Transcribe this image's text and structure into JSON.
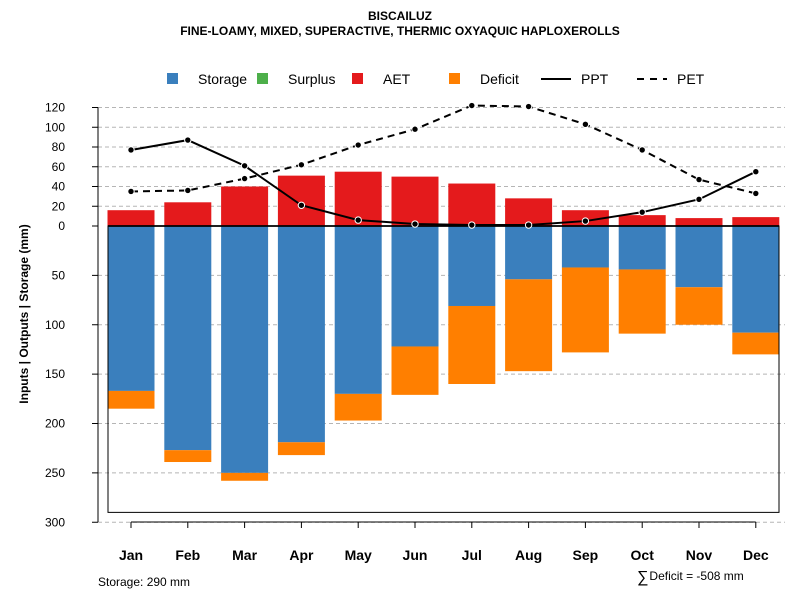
{
  "title": "BISCAILUZ",
  "subtitle": "FINE-LOAMY, MIXED, SUPERACTIVE, THERMIC OXYAQUIC HAPLOXEROLLS",
  "footer": {
    "storage_note": "Storage: 290 mm",
    "deficit_symbol": "∑",
    "deficit_note": "Deficit = -508 mm"
  },
  "colors": {
    "storage": "#3a7fbd",
    "surplus": "#4daf4a",
    "aet": "#e41a1c",
    "deficit": "#ff7f00",
    "line": "#000000",
    "grid": "#b5b5b5"
  },
  "chart_data": {
    "type": "bar",
    "title": "BISCAILUZ",
    "subtitle": "FINE-LOAMY, MIXED, SUPERACTIVE, THERMIC OXYAQUIC HAPLOXEROLLS",
    "ylabel": "Inputs | Outputs | Storage    (mm)",
    "categories": [
      "Jan",
      "Feb",
      "Mar",
      "Apr",
      "May",
      "Jun",
      "Jul",
      "Aug",
      "Sep",
      "Oct",
      "Nov",
      "Dec"
    ],
    "upper_ticks": [
      0,
      20,
      40,
      60,
      80,
      100,
      120
    ],
    "lower_ticks": [
      50,
      100,
      150,
      200,
      250,
      300
    ],
    "upper_ylim": [
      0,
      125
    ],
    "lower_ylim": [
      0,
      300
    ],
    "storage_capacity": 290,
    "legend": [
      {
        "key": "storage",
        "label": "Storage",
        "kind": "box"
      },
      {
        "key": "surplus",
        "label": "Surplus",
        "kind": "box"
      },
      {
        "key": "aet",
        "label": "AET",
        "kind": "box"
      },
      {
        "key": "deficit",
        "label": "Deficit",
        "kind": "box"
      },
      {
        "key": "ppt",
        "label": "PPT",
        "kind": "solid"
      },
      {
        "key": "pet",
        "label": "PET",
        "kind": "dashed"
      }
    ],
    "series": [
      {
        "name": "AET",
        "values": [
          16,
          24,
          40,
          51,
          55,
          50,
          43,
          28,
          16,
          11,
          8,
          9
        ]
      },
      {
        "name": "Storage",
        "values": [
          167,
          227,
          250,
          219,
          170,
          122,
          81,
          54,
          42,
          44,
          62,
          108
        ]
      },
      {
        "name": "Deficit",
        "values": [
          18,
          12,
          8,
          13,
          27,
          49,
          79,
          93,
          86,
          65,
          38,
          22
        ]
      },
      {
        "name": "Surplus",
        "values": [
          0,
          0,
          0,
          0,
          0,
          0,
          0,
          0,
          0,
          0,
          0,
          0
        ]
      },
      {
        "name": "PPT",
        "values": [
          77,
          87,
          61,
          21,
          6,
          2,
          1,
          1,
          5,
          14,
          27,
          55
        ]
      },
      {
        "name": "PET",
        "values": [
          35,
          36,
          48,
          62,
          82,
          98,
          122,
          121,
          103,
          77,
          47,
          33
        ]
      }
    ]
  }
}
